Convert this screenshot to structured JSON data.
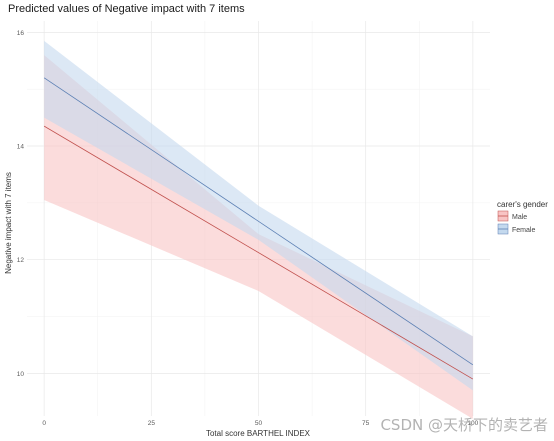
{
  "chart_data": {
    "type": "line",
    "title": "Predicted values of Negative impact with 7 items",
    "xlabel": "Total score BARTHEL INDEX",
    "ylabel": "Negative impact with 7 items",
    "xlim": [
      -4,
      104
    ],
    "ylim": [
      9.25,
      16.2
    ],
    "x_ticks": [
      0,
      25,
      50,
      75,
      100
    ],
    "x_tick_labels": [
      "0",
      "25",
      "50",
      "75",
      "100"
    ],
    "y_ticks": [
      10,
      12,
      14,
      16
    ],
    "y_tick_labels": [
      "10",
      "12",
      "14",
      "16"
    ],
    "grid": true,
    "legend": {
      "title": "carer's gender",
      "position": "right"
    },
    "series": [
      {
        "name": "Male",
        "color": "#c0504d",
        "fill_color": "#f8c4c4",
        "x": [
          0,
          100
        ],
        "y": [
          14.35,
          9.9
        ],
        "ci_x": [
          0,
          50,
          100
        ],
        "ci_low": [
          13.05,
          11.45,
          9.2
        ],
        "ci_high": [
          15.6,
          12.45,
          10.65
        ]
      },
      {
        "name": "Female",
        "color": "#5b7fb3",
        "fill_color": "#c4d9ee",
        "x": [
          0,
          100
        ],
        "y": [
          15.2,
          10.15
        ],
        "ci_x": [
          0,
          50,
          100
        ],
        "ci_low": [
          14.5,
          12.35,
          9.7
        ],
        "ci_high": [
          15.85,
          12.95,
          10.65
        ]
      }
    ]
  },
  "watermark": "CSDN @天桥下的卖艺者"
}
